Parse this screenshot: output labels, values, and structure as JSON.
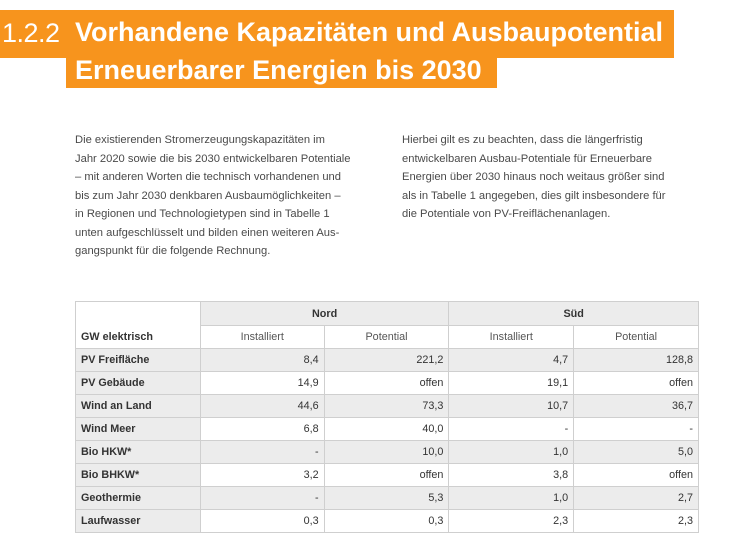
{
  "heading": {
    "number": "1.2.2",
    "line1": "Vorhandene Kapazitäten und Ausbaupotential",
    "line2": "Erneuerbarer Energien bis 2030"
  },
  "text": {
    "col1": [
      "Die existierenden Stromerzeugungskapazitäten im",
      "Jahr 2020 sowie die bis 2030 entwickelbaren Potentiale",
      "– mit anderen Worten die technisch vorhandenen und",
      "bis zum Jahr 2030 denkbaren Ausbaumöglichkeiten –",
      "in Regionen und Technologietypen sind in Tabelle 1",
      "unten aufgeschlüsselt und bilden einen weiteren Aus-",
      "gangspunkt für die folgende Rechnung."
    ],
    "col2": [
      "Hierbei gilt es zu beachten, dass die längerfristig",
      "entwickelbaren Ausbau-Potentiale für Erneuerbare",
      "Energien über 2030 hinaus noch weitaus größer sind",
      "als in Tabelle 1 angegeben, dies gilt insbesondere für",
      "die Potentiale von PV-Freiflächenanlagen."
    ]
  },
  "table": {
    "row_header": "GW elektrisch",
    "groups": [
      "Nord",
      "Süd"
    ],
    "subheaders": [
      "Installiert",
      "Potential",
      "Installiert",
      "Potential"
    ],
    "rows": [
      {
        "label": "PV Freifläche",
        "values": [
          "8,4",
          "221,2",
          "4,7",
          "128,8"
        ]
      },
      {
        "label": "PV Gebäude",
        "values": [
          "14,9",
          "offen",
          "19,1",
          "offen"
        ]
      },
      {
        "label": "Wind an Land",
        "values": [
          "44,6",
          "73,3",
          "10,7",
          "36,7"
        ]
      },
      {
        "label": "Wind Meer",
        "values": [
          "6,8",
          "40,0",
          "-",
          "-"
        ]
      },
      {
        "label": "Bio HKW*",
        "values": [
          "-",
          "10,0",
          "1,0",
          "5,0"
        ]
      },
      {
        "label": "Bio BHKW*",
        "values": [
          "3,2",
          "offen",
          "3,8",
          "offen"
        ]
      },
      {
        "label": "Geothermie",
        "values": [
          "-",
          "5,3",
          "1,0",
          "2,7"
        ]
      },
      {
        "label": "Laufwasser",
        "values": [
          "0,3",
          "0,3",
          "2,3",
          "2,3"
        ]
      }
    ]
  }
}
